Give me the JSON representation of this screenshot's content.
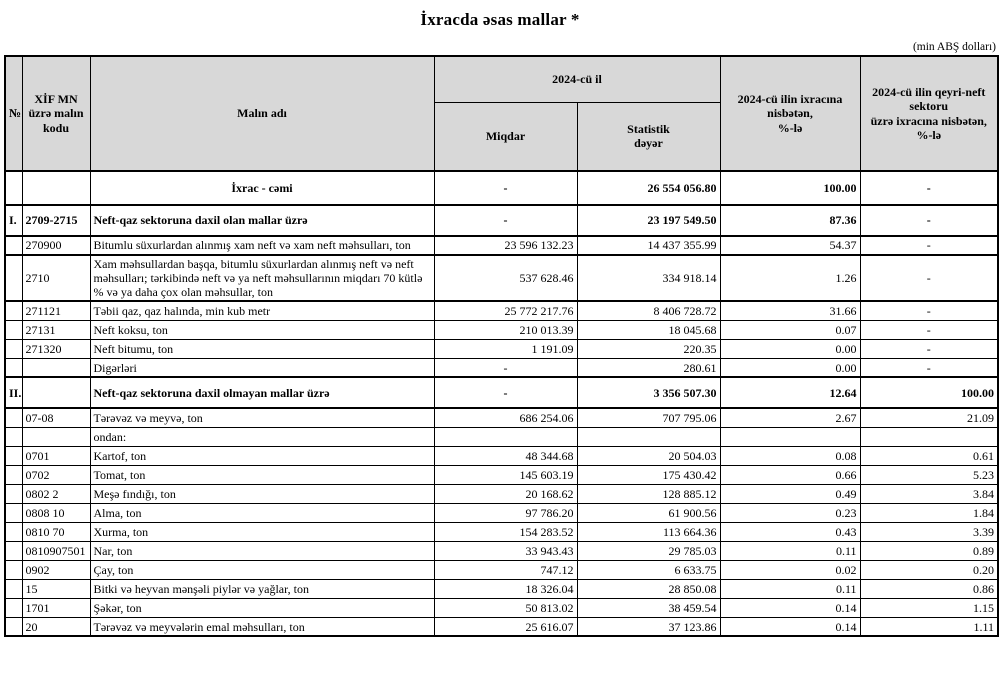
{
  "title": "İxracda əsas mallar *",
  "unit_note": "(min ABŞ dolları)",
  "table": {
    "header": {
      "no": "№",
      "code": "XİF MN\nüzrə malın\nkodu",
      "name": "Malın adı",
      "year_group": "2024-cü il",
      "qty": "Miqdar",
      "value": "Statistik\ndəyər",
      "pct_total": "2024-cü ilin ixracına\nnisbətən,\n%-lə",
      "pct_nonoil": "2024-cü ilin qeyri-neft\nsektoru\nüzrə ixracına nisbətən,\n%-lə"
    },
    "rows": [
      {
        "no": "",
        "code": "",
        "name": "İxrac - cəmi",
        "qty": "-",
        "value": "26 554 056.80",
        "pct_total": "100.00",
        "pct_nonoil": "-",
        "style": "total"
      },
      {
        "no": "I.",
        "code": "2709-2715",
        "name": "Neft-qaz sektoruna daxil olan mallar üzrə",
        "qty": "-",
        "value": "23 197 549.50",
        "pct_total": "87.36",
        "pct_nonoil": "-",
        "style": "section"
      },
      {
        "no": "",
        "code": "270900",
        "name": "Bitumlu süxurlardan alınmış xam neft və xam neft məhsulları, ton",
        "qty": "23 596 132.23",
        "value": "14 437 355.99",
        "pct_total": "54.37",
        "pct_nonoil": "-",
        "style": "normal",
        "thick": true
      },
      {
        "no": "",
        "code": "2710",
        "name": "Xam məhsullardan başqa, bitumlu süxurlardan alınmış neft və neft məhsulları; tərkibində neft və ya neft məhsullarının miqdarı 70 kütlə % və ya daha çox olan məhsullar, ton",
        "qty": "537 628.46",
        "value": "334 918.14",
        "pct_total": "1.26",
        "pct_nonoil": "-",
        "style": "normal",
        "thick": true
      },
      {
        "no": "",
        "code": "271121",
        "name": "Təbii qaz, qaz halında, min kub metr",
        "qty": "25 772 217.76",
        "value": "8 406 728.72",
        "pct_total": "31.66",
        "pct_nonoil": "-",
        "style": "normal"
      },
      {
        "no": "",
        "code": "27131",
        "name": "Neft koksu, ton",
        "qty": "210 013.39",
        "value": "18 045.68",
        "pct_total": "0.07",
        "pct_nonoil": "-",
        "style": "normal"
      },
      {
        "no": "",
        "code": "271320",
        "name": "Neft bitumu, ton",
        "qty": "1 191.09",
        "value": "220.35",
        "pct_total": "0.00",
        "pct_nonoil": "-",
        "style": "normal"
      },
      {
        "no": "",
        "code": "",
        "name": "Digərləri",
        "qty": "-",
        "value": "280.61",
        "pct_total": "0.00",
        "pct_nonoil": "-",
        "style": "normal"
      },
      {
        "no": "II.",
        "code": "",
        "name": "Neft-qaz sektoruna daxil olmayan mallar üzrə",
        "qty": "-",
        "value": "3 356 507.30",
        "pct_total": "12.64",
        "pct_nonoil": "100.00",
        "style": "section"
      },
      {
        "no": "",
        "code": "07-08",
        "name": "Tərəvəz və meyvə, ton",
        "qty": "686 254.06",
        "value": "707 795.06",
        "pct_total": "2.67",
        "pct_nonoil": "21.09",
        "style": "normal"
      },
      {
        "no": "",
        "code": "",
        "name": "ondan:",
        "qty": "",
        "value": "",
        "pct_total": "",
        "pct_nonoil": "",
        "style": "label"
      },
      {
        "no": "",
        "code": "0701",
        "name": "Kartof, ton",
        "qty": "48 344.68",
        "value": "20 504.03",
        "pct_total": "0.08",
        "pct_nonoil": "0.61",
        "style": "subitem"
      },
      {
        "no": "",
        "code": "0702",
        "name": "Tomat, ton",
        "qty": "145 603.19",
        "value": "175 430.42",
        "pct_total": "0.66",
        "pct_nonoil": "5.23",
        "style": "subitem"
      },
      {
        "no": "",
        "code": "0802 2",
        "name": "Meşə fındığı, ton",
        "qty": "20 168.62",
        "value": "128 885.12",
        "pct_total": "0.49",
        "pct_nonoil": "3.84",
        "style": "subitem"
      },
      {
        "no": "",
        "code": "0808 10",
        "name": "Alma, ton",
        "qty": "97 786.20",
        "value": "61 900.56",
        "pct_total": "0.23",
        "pct_nonoil": "1.84",
        "style": "subitem"
      },
      {
        "no": "",
        "code": "0810 70",
        "name": "Xurma, ton",
        "qty": "154 283.52",
        "value": "113 664.36",
        "pct_total": "0.43",
        "pct_nonoil": "3.39",
        "style": "subitem"
      },
      {
        "no": "",
        "code": "0810907501",
        "name": "Nar, ton",
        "qty": "33 943.43",
        "value": "29 785.03",
        "pct_total": "0.11",
        "pct_nonoil": "0.89",
        "style": "subitem"
      },
      {
        "no": "",
        "code": "0902",
        "name": "Çay, ton",
        "qty": "747.12",
        "value": "6 633.75",
        "pct_total": "0.02",
        "pct_nonoil": "0.20",
        "style": "normal"
      },
      {
        "no": "",
        "code": "15",
        "name": "Bitki və heyvan mənşəli piylər və yağlar, ton",
        "qty": "18 326.04",
        "value": "28 850.08",
        "pct_total": "0.11",
        "pct_nonoil": "0.86",
        "style": "normal"
      },
      {
        "no": "",
        "code": "1701",
        "name": "Şəkər, ton",
        "qty": "50 813.02",
        "value": "38 459.54",
        "pct_total": "0.14",
        "pct_nonoil": "1.15",
        "style": "normal"
      },
      {
        "no": "",
        "code": "20",
        "name": "Tərəvəz və meyvələrin emal məhsulları, ton",
        "qty": "25 616.07",
        "value": "37 123.86",
        "pct_total": "0.14",
        "pct_nonoil": "1.11",
        "style": "normal"
      }
    ]
  }
}
